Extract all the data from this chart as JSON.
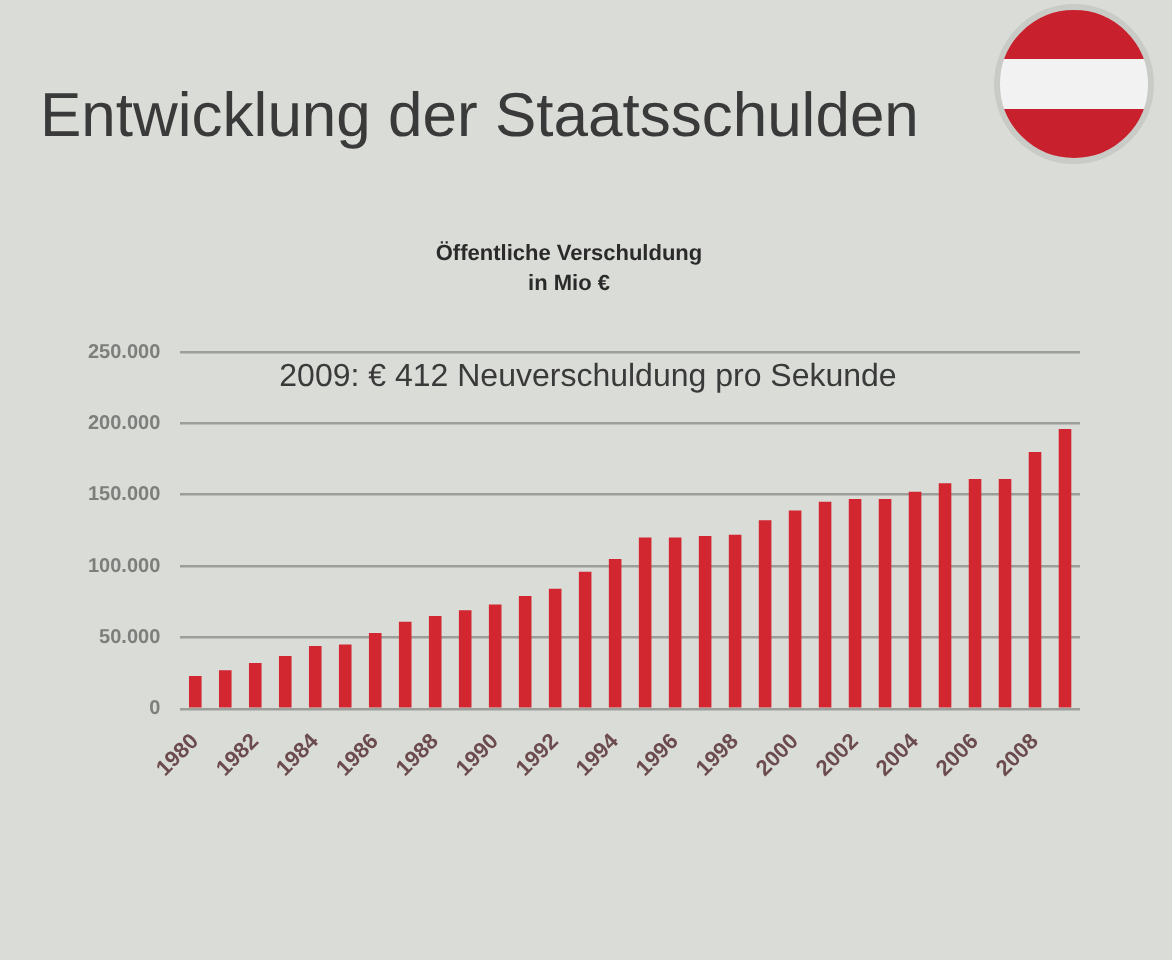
{
  "chart_data": {
    "type": "bar",
    "title": "Entwicklung der Staatsschulden",
    "subtitle": "Öffentliche Verschuldung in Mio €",
    "annotations": [
      "2009: € 412 Neuverschuldung pro Sekunde"
    ],
    "categories": [
      "1980",
      null,
      "1982",
      null,
      "1984",
      null,
      "1986",
      null,
      "1988",
      null,
      "1990",
      null,
      "1992",
      null,
      "1994",
      null,
      "1996",
      null,
      "1998",
      null,
      "2000",
      null,
      "2002",
      null,
      "2004",
      null,
      "2006",
      null,
      "2008",
      null
    ],
    "values": [
      23000,
      27000,
      32000,
      37000,
      44000,
      45000,
      53000,
      61000,
      65000,
      69000,
      73000,
      79000,
      84000,
      96000,
      105000,
      120000,
      120000,
      121000,
      122000,
      132000,
      139000,
      145000,
      147000,
      147000,
      152000,
      158000,
      161000,
      161000,
      180000,
      196000
    ],
    "color": "#d22630",
    "ylim": [
      0,
      250000
    ],
    "yticks": [
      {
        "value": 0,
        "label": "0"
      },
      {
        "value": 50000,
        "label": "50.000"
      },
      {
        "value": 100000,
        "label": "100.000"
      },
      {
        "value": 150000,
        "label": "150.000"
      },
      {
        "value": 200000,
        "label": "200.000"
      },
      {
        "value": 250000,
        "label": "250.000"
      }
    ],
    "grid": "y",
    "legend": false
  }
}
